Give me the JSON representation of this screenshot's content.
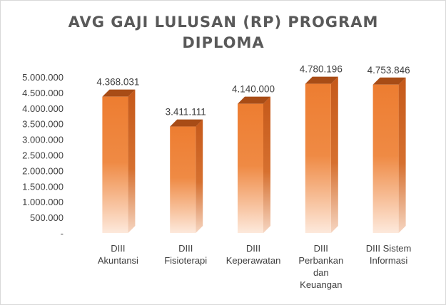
{
  "chart_data": {
    "type": "bar",
    "title_lines": [
      "AVG GAJI LULUSAN (RP) PROGRAM",
      "DIPLOMA"
    ],
    "categories": [
      [
        "DIII",
        "Akuntansi"
      ],
      [
        "DIII",
        "Fisioterapi"
      ],
      [
        "DIII",
        "Keperawatan"
      ],
      [
        "DIII",
        "Perbankan",
        "dan",
        "Keuangan"
      ],
      [
        "DIII Sistem",
        "Informasi"
      ]
    ],
    "values": [
      4368031,
      3411111,
      4140000,
      4780196,
      4753846
    ],
    "data_labels": [
      "4.368.031",
      "3.411.111",
      "4.140.000",
      "4.780.196",
      "4.753.846"
    ],
    "y_ticks": [
      {
        "value": 0,
        "label": "-"
      },
      {
        "value": 500000,
        "label": "500.000"
      },
      {
        "value": 1000000,
        "label": "1.000.000"
      },
      {
        "value": 1500000,
        "label": "1.500.000"
      },
      {
        "value": 2000000,
        "label": "2.000.000"
      },
      {
        "value": 2500000,
        "label": "2.500.000"
      },
      {
        "value": 3000000,
        "label": "3.000.000"
      },
      {
        "value": 3500000,
        "label": "3.500.000"
      },
      {
        "value": 4000000,
        "label": "4.000.000"
      },
      {
        "value": 4500000,
        "label": "4.500.000"
      },
      {
        "value": 5000000,
        "label": "5.000.000"
      }
    ],
    "ylim": [
      0,
      5000000
    ],
    "grid": false,
    "legend": "none",
    "colors": {
      "bar_top": "#ed7d31",
      "bar_bottom": "#fbe3d4",
      "bar_side": "#c5591a",
      "bar_cap": "#a84c16",
      "text": "#404040",
      "title": "#595959"
    }
  }
}
